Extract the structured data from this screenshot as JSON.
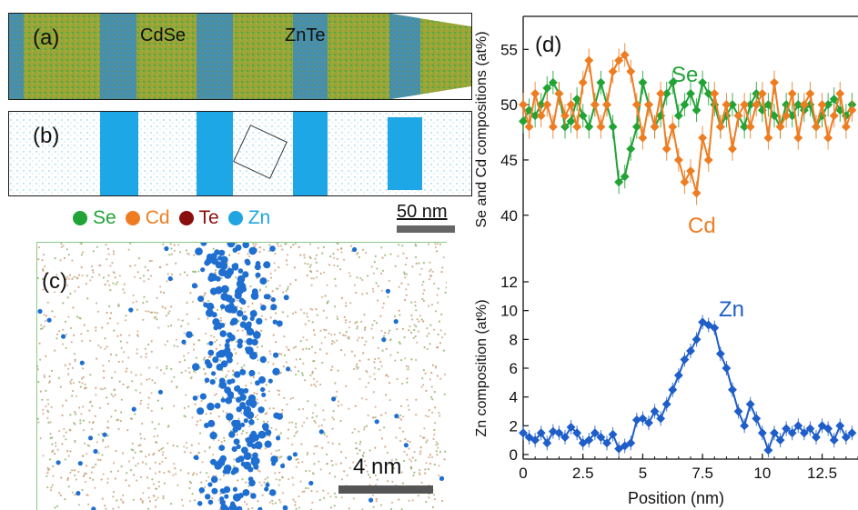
{
  "panels": {
    "a": {
      "label": "(a)",
      "text_cdse": "CdSe",
      "text_znte": "ZnTe"
    },
    "b": {
      "label": "(b)"
    },
    "c": {
      "label": "(c)",
      "scale_text": "4 nm"
    },
    "d": {
      "label": "(d)"
    }
  },
  "legend": {
    "items": [
      {
        "label": "Se",
        "color": "#21a336"
      },
      {
        "label": "Cd",
        "color": "#ee7d22"
      },
      {
        "label": "Te",
        "color": "#8b0e0e"
      },
      {
        "label": "Zn",
        "color": "#1fa6e0"
      }
    ]
  },
  "scalebar_ab": {
    "text": "50 nm"
  },
  "colors": {
    "se": "#21a336",
    "cd": "#ee7d22",
    "zn": "#1f5ec9",
    "zn_atom": "#1fa6e0"
  },
  "chart_data": [
    {
      "type": "line",
      "ylabel": "Se and Cd compositions (at%)",
      "y_ticks": [
        "40",
        "45",
        "50",
        "55"
      ],
      "ylim": [
        38.5,
        57
      ],
      "xlim": [
        0,
        14
      ],
      "series": [
        {
          "name": "Se",
          "color": "#21a336",
          "x": [
            0,
            0.25,
            0.5,
            0.75,
            1,
            1.25,
            1.5,
            1.75,
            2,
            2.25,
            2.5,
            2.75,
            3,
            3.25,
            3.5,
            3.75,
            4,
            4.25,
            4.5,
            4.75,
            5,
            5.25,
            5.5,
            5.75,
            6,
            6.25,
            6.5,
            6.75,
            7,
            7.25,
            7.5,
            7.75,
            8,
            8.25,
            8.5,
            8.75,
            9,
            9.25,
            9.5,
            9.75,
            10,
            10.25,
            10.5,
            10.75,
            11,
            11.25,
            11.5,
            11.75,
            12,
            12.25,
            12.5,
            12.75,
            13,
            13.25,
            13.5,
            13.75
          ],
          "y": [
            48.5,
            49.5,
            49,
            50,
            51.5,
            52,
            51,
            48,
            48.5,
            50.5,
            49,
            48,
            50,
            52,
            50,
            48,
            43,
            43.5,
            46,
            48,
            52,
            50,
            48,
            49,
            51,
            52,
            49,
            50,
            51,
            49.5,
            52,
            51,
            50,
            48,
            49,
            50,
            49,
            48,
            50,
            51,
            49.5,
            50,
            49,
            48,
            50,
            49,
            50,
            49.5,
            50,
            48,
            49,
            50,
            50.5,
            49.5,
            49,
            50
          ]
        },
        {
          "name": "Cd",
          "color": "#ee7d22",
          "x": [
            0,
            0.25,
            0.5,
            0.75,
            1,
            1.25,
            1.5,
            1.75,
            2,
            2.25,
            2.5,
            2.75,
            3,
            3.25,
            3.5,
            3.75,
            4,
            4.25,
            4.5,
            4.75,
            5,
            5.25,
            5.5,
            5.75,
            6,
            6.25,
            6.5,
            6.75,
            7,
            7.25,
            7.5,
            7.75,
            8,
            8.25,
            8.5,
            8.75,
            9,
            9.25,
            9.5,
            9.75,
            10,
            10.25,
            10.5,
            10.75,
            11,
            11.25,
            11.5,
            11.75,
            12,
            12.25,
            12.5,
            12.75,
            13,
            13.25,
            13.5,
            13.75
          ],
          "y": [
            50,
            48,
            51,
            49,
            50,
            48,
            51,
            49,
            50,
            48,
            52,
            54,
            50,
            48,
            50,
            53,
            54,
            54.5,
            53,
            50,
            47,
            50,
            48,
            51,
            46,
            48,
            45,
            43,
            44,
            42,
            47,
            45,
            51,
            48,
            50,
            46,
            49,
            50,
            48,
            50,
            51,
            47,
            52,
            48,
            49,
            51,
            47,
            50,
            51,
            48,
            50,
            47,
            49,
            51,
            48,
            49.5
          ]
        }
      ],
      "annotations": [
        {
          "text": "Se",
          "color": "#21a336"
        },
        {
          "text": "Cd",
          "color": "#ee7d22"
        }
      ]
    },
    {
      "type": "line",
      "ylabel": "Zn composition (at%)",
      "xlabel": "Position (nm)",
      "x_ticks": [
        "0",
        "2.5",
        "5",
        "7.5",
        "10",
        "12.5"
      ],
      "y_ticks": [
        "0",
        "2",
        "4",
        "6",
        "8",
        "10",
        "12"
      ],
      "ylim": [
        0,
        12
      ],
      "xlim": [
        0,
        14
      ],
      "series": [
        {
          "name": "Zn",
          "color": "#1f5ec9",
          "x": [
            0,
            0.25,
            0.5,
            0.75,
            1,
            1.25,
            1.5,
            1.75,
            2,
            2.25,
            2.5,
            2.75,
            3,
            3.25,
            3.5,
            3.75,
            4,
            4.25,
            4.5,
            4.75,
            5,
            5.25,
            5.5,
            5.75,
            6,
            6.25,
            6.5,
            6.75,
            7,
            7.25,
            7.5,
            7.75,
            8,
            8.25,
            8.5,
            8.75,
            9,
            9.25,
            9.5,
            9.75,
            10,
            10.25,
            10.5,
            10.75,
            11,
            11.25,
            11.5,
            11.75,
            12,
            12.25,
            12.5,
            12.75,
            13,
            13.25,
            13.5,
            13.75
          ],
          "y": [
            1.5,
            1.2,
            1.0,
            1.5,
            0.8,
            1.6,
            1.5,
            1.2,
            1.9,
            1.5,
            0.8,
            1.0,
            1.5,
            1.2,
            0.8,
            1.4,
            0.4,
            0.6,
            0.8,
            2.4,
            2.5,
            2.2,
            3.0,
            2.5,
            3.5,
            4.5,
            5.5,
            6.6,
            7.2,
            8.0,
            9.2,
            9.0,
            8.8,
            7.0,
            6.0,
            4.5,
            3.0,
            2.0,
            3.5,
            2.5,
            1.5,
            0.3,
            1.5,
            1.0,
            1.8,
            1.5,
            2.0,
            1.5,
            1.8,
            1.2,
            2.0,
            1.8,
            1.0,
            2.0,
            1.2,
            1.5
          ]
        }
      ],
      "annotations": [
        {
          "text": "Zn",
          "color": "#1f5ec9"
        }
      ]
    }
  ]
}
